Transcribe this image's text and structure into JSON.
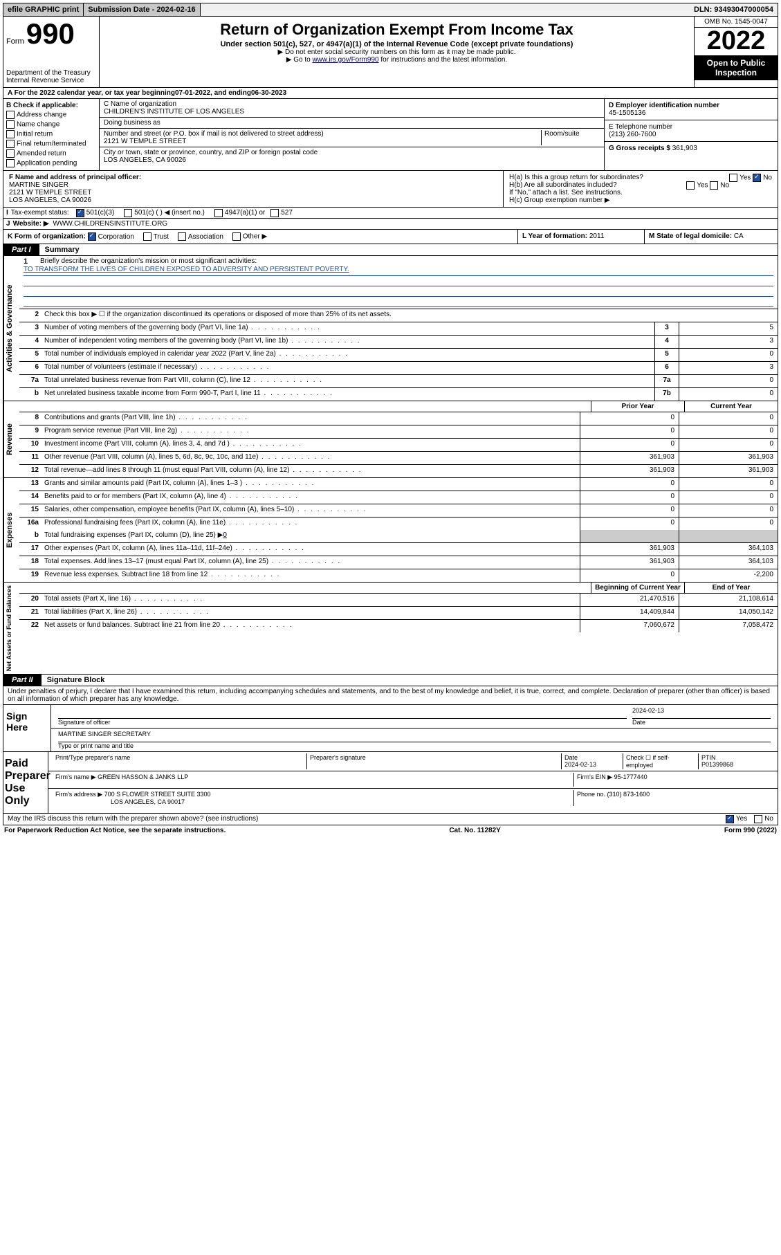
{
  "topbar": {
    "efile": "efile GRAPHIC print",
    "sub_label": "Submission Date - ",
    "sub_date": "2024-02-16",
    "dln_label": "DLN: ",
    "dln": "93493047000054"
  },
  "header": {
    "form_word": "Form",
    "form_num": "990",
    "dept": "Department of the Treasury\nInternal Revenue Service",
    "title": "Return of Organization Exempt From Income Tax",
    "sub1": "Under section 501(c), 527, or 4947(a)(1) of the Internal Revenue Code (except private foundations)",
    "sub2a": "▶ Do not enter social security numbers on this form as it may be made public.",
    "sub2b_pre": "▶ Go to ",
    "sub2b_link": "www.irs.gov/Form990",
    "sub2b_post": " for instructions and the latest information.",
    "omb": "OMB No. 1545-0047",
    "year": "2022",
    "inspection": "Open to Public Inspection"
  },
  "period": {
    "label_a": "A For the 2022 calendar year, or tax year beginning ",
    "begin": "07-01-2022",
    "label_b": " , and ending ",
    "end": "06-30-2023"
  },
  "boxB": {
    "title": "B Check if applicable:",
    "items": [
      "Address change",
      "Name change",
      "Initial return",
      "Final return/terminated",
      "Amended return",
      "Application pending"
    ]
  },
  "boxC": {
    "name_lbl": "C Name of organization",
    "name": "CHILDREN'S INSTITUTE OF LOS ANGELES",
    "dba_lbl": "Doing business as",
    "street_lbl": "Number and street (or P.O. box if mail is not delivered to street address)",
    "room_lbl": "Room/suite",
    "street": "2121 W TEMPLE STREET",
    "city_lbl": "City or town, state or province, country, and ZIP or foreign postal code",
    "city": "LOS ANGELES, CA  90026"
  },
  "boxD": {
    "lbl": "D Employer identification number",
    "val": "45-1505136"
  },
  "boxE": {
    "lbl": "E Telephone number",
    "val": "(213) 260-7600"
  },
  "boxG": {
    "lbl": "G Gross receipts $ ",
    "val": "361,903"
  },
  "boxF": {
    "lbl": "F Name and address of principal officer:",
    "line1": "MARTINE SINGER",
    "line2": "2121 W TEMPLE STREET",
    "line3": "LOS ANGELES, CA  90026"
  },
  "boxH": {
    "ha": "H(a)  Is this a group return for subordinates?",
    "hb": "H(b)  Are all subordinates included?",
    "hb_note": "If \"No,\" attach a list. See instructions.",
    "hc": "H(c)  Group exemption number ▶",
    "yes": "Yes",
    "no": "No"
  },
  "boxI": {
    "lbl": "Tax-exempt status:",
    "opts": [
      "501(c)(3)",
      "501(c) (  ) ◀ (insert no.)",
      "4947(a)(1) or",
      "527"
    ]
  },
  "boxJ": {
    "lbl": "Website: ▶",
    "val": "WWW.CHILDRENSINSTITUTE.ORG"
  },
  "boxK": {
    "lbl": "K Form of organization:",
    "opts": [
      "Corporation",
      "Trust",
      "Association",
      "Other ▶"
    ]
  },
  "boxL": {
    "lbl": "L Year of formation: ",
    "val": "2011"
  },
  "boxM": {
    "lbl": "M State of legal domicile: ",
    "val": "CA"
  },
  "part1": {
    "num": "Part I",
    "title": "Summary"
  },
  "mission": {
    "lbl": "Briefly describe the organization's mission or most significant activities:",
    "text": "TO TRANSFORM THE LIVES OF CHILDREN EXPOSED TO ADVERSITY AND PERSISTENT POVERTY."
  },
  "line2": "Check this box ▶ ☐  if the organization discontinued its operations or disposed of more than 25% of its net assets.",
  "governance_label": "Activities & Governance",
  "revenue_label": "Revenue",
  "expenses_label": "Expenses",
  "netassets_label": "Net Assets or Fund Balances",
  "gov_lines": [
    {
      "n": "3",
      "d": "Number of voting members of the governing body (Part VI, line 1a)",
      "b": "3",
      "v": "5"
    },
    {
      "n": "4",
      "d": "Number of independent voting members of the governing body (Part VI, line 1b)",
      "b": "4",
      "v": "3"
    },
    {
      "n": "5",
      "d": "Total number of individuals employed in calendar year 2022 (Part V, line 2a)",
      "b": "5",
      "v": "0"
    },
    {
      "n": "6",
      "d": "Total number of volunteers (estimate if necessary)",
      "b": "6",
      "v": "3"
    },
    {
      "n": "7a",
      "d": "Total unrelated business revenue from Part VIII, column (C), line 12",
      "b": "7a",
      "v": "0"
    },
    {
      "n": "b",
      "d": "Net unrelated business taxable income from Form 990-T, Part I, line 11",
      "b": "7b",
      "v": "0"
    }
  ],
  "col_headers": {
    "prior": "Prior Year",
    "current": "Current Year"
  },
  "rev_lines": [
    {
      "n": "8",
      "d": "Contributions and grants (Part VIII, line 1h)",
      "p": "0",
      "c": "0"
    },
    {
      "n": "9",
      "d": "Program service revenue (Part VIII, line 2g)",
      "p": "0",
      "c": "0"
    },
    {
      "n": "10",
      "d": "Investment income (Part VIII, column (A), lines 3, 4, and 7d )",
      "p": "0",
      "c": "0"
    },
    {
      "n": "11",
      "d": "Other revenue (Part VIII, column (A), lines 5, 6d, 8c, 9c, 10c, and 11e)",
      "p": "361,903",
      "c": "361,903"
    },
    {
      "n": "12",
      "d": "Total revenue—add lines 8 through 11 (must equal Part VIII, column (A), line 12)",
      "p": "361,903",
      "c": "361,903"
    }
  ],
  "exp_lines": [
    {
      "n": "13",
      "d": "Grants and similar amounts paid (Part IX, column (A), lines 1–3 )",
      "p": "0",
      "c": "0"
    },
    {
      "n": "14",
      "d": "Benefits paid to or for members (Part IX, column (A), line 4)",
      "p": "0",
      "c": "0"
    },
    {
      "n": "15",
      "d": "Salaries, other compensation, employee benefits (Part IX, column (A), lines 5–10)",
      "p": "0",
      "c": "0"
    },
    {
      "n": "16a",
      "d": "Professional fundraising fees (Part IX, column (A), line 11e)",
      "p": "0",
      "c": "0"
    }
  ],
  "line16b": {
    "n": "b",
    "d": "Total fundraising expenses (Part IX, column (D), line 25) ▶",
    "v": "0"
  },
  "exp_lines2": [
    {
      "n": "17",
      "d": "Other expenses (Part IX, column (A), lines 11a–11d, 11f–24e)",
      "p": "361,903",
      "c": "364,103"
    },
    {
      "n": "18",
      "d": "Total expenses. Add lines 13–17 (must equal Part IX, column (A), line 25)",
      "p": "361,903",
      "c": "364,103"
    },
    {
      "n": "19",
      "d": "Revenue less expenses. Subtract line 18 from line 12",
      "p": "0",
      "c": "-2,200"
    }
  ],
  "col_headers2": {
    "begin": "Beginning of Current Year",
    "end": "End of Year"
  },
  "na_lines": [
    {
      "n": "20",
      "d": "Total assets (Part X, line 16)",
      "p": "21,470,516",
      "c": "21,108,614"
    },
    {
      "n": "21",
      "d": "Total liabilities (Part X, line 26)",
      "p": "14,409,844",
      "c": "14,050,142"
    },
    {
      "n": "22",
      "d": "Net assets or fund balances. Subtract line 21 from line 20",
      "p": "7,060,672",
      "c": "7,058,472"
    }
  ],
  "part2": {
    "num": "Part II",
    "title": "Signature Block"
  },
  "sig_decl": "Under penalties of perjury, I declare that I have examined this return, including accompanying schedules and statements, and to the best of my knowledge and belief, it is true, correct, and complete. Declaration of preparer (other than officer) is based on all information of which preparer has any knowledge.",
  "sign_here": "Sign Here",
  "sig_officer_lbl": "Signature of officer",
  "sig_date_lbl": "Date",
  "sig_date": "2024-02-13",
  "sig_name": "MARTINE SINGER  SECRETARY",
  "sig_name_lbl": "Type or print name and title",
  "paid_prep": "Paid Preparer Use Only",
  "prep": {
    "name_lbl": "Print/Type preparer's name",
    "sig_lbl": "Preparer's signature",
    "date_lbl": "Date",
    "date": "2024-02-13",
    "check_lbl": "Check ☐ if self-employed",
    "ptin_lbl": "PTIN",
    "ptin": "P01399868",
    "firm_name_lbl": "Firm's name    ▶ ",
    "firm_name": "GREEN HASSON & JANKS LLP",
    "firm_ein_lbl": "Firm's EIN ▶ ",
    "firm_ein": "95-1777440",
    "firm_addr_lbl": "Firm's address ▶ ",
    "firm_addr1": "700 S FLOWER STREET SUITE 3300",
    "firm_addr2": "LOS ANGELES, CA  90017",
    "phone_lbl": "Phone no. ",
    "phone": "(310) 873-1600"
  },
  "discuss": {
    "q": "May the IRS discuss this return with the preparer shown above? (see instructions)",
    "yes": "Yes",
    "no": "No"
  },
  "footer": {
    "left": "For Paperwork Reduction Act Notice, see the separate instructions.",
    "mid": "Cat. No. 11282Y",
    "right": "Form 990 (2022)"
  }
}
